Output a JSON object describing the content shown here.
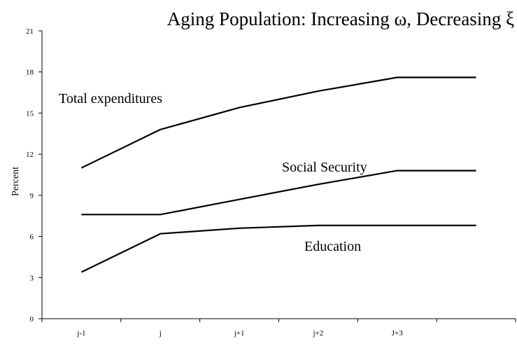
{
  "chart_data": {
    "type": "line",
    "title": "Aging Population: Increasing ω, Decreasing ξ",
    "xlabel": "",
    "ylabel": "Percent",
    "categories": [
      "j-1",
      "j",
      "j+1",
      "j+2",
      "J+3",
      ""
    ],
    "ylim": [
      0,
      21
    ],
    "yticks": [
      0,
      3,
      6,
      9,
      12,
      15,
      18,
      21
    ],
    "grid": false,
    "series": [
      {
        "name": "Total expenditures",
        "values": [
          11.0,
          13.8,
          15.4,
          16.6,
          17.6,
          17.6
        ]
      },
      {
        "name": "Social Security",
        "values": [
          7.6,
          7.6,
          8.7,
          9.8,
          10.8,
          10.8
        ]
      },
      {
        "name": "Education",
        "values": [
          3.4,
          6.2,
          6.6,
          6.8,
          6.8,
          6.8
        ]
      }
    ]
  }
}
